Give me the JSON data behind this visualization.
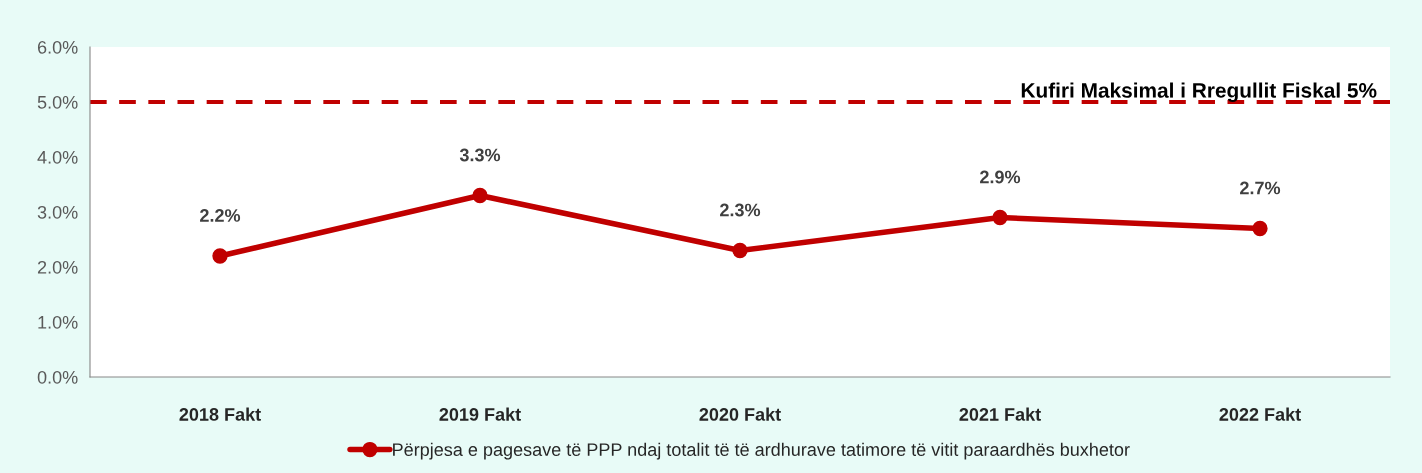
{
  "chart_data": {
    "type": "line",
    "categories": [
      "2018 Fakt",
      "2019 Fakt",
      "2020 Fakt",
      "2021 Fakt",
      "2022 Fakt"
    ],
    "series": [
      {
        "name": "Përpjesa e pagesave të PPP ndaj totalit të të ardhurave tatimore të vitit paraardhës buxhetor",
        "color": "#c00000",
        "values": [
          2.2,
          3.3,
          2.3,
          2.9,
          2.7
        ]
      }
    ],
    "ylim": [
      0,
      6
    ],
    "yticks": [
      {
        "value": 0,
        "label": "0.0%"
      },
      {
        "value": 1,
        "label": "1.0%"
      },
      {
        "value": 2,
        "label": "2.0%"
      },
      {
        "value": 3,
        "label": "3.0%"
      },
      {
        "value": 4,
        "label": "4.0%"
      },
      {
        "value": 5,
        "label": "5.0%"
      },
      {
        "value": 6,
        "label": "6.0%"
      }
    ],
    "value_labels": [
      "2.2%",
      "3.3%",
      "2.3%",
      "2.9%",
      "2.7%"
    ],
    "ref_lines": [
      {
        "axis": "y",
        "value": 5,
        "label": "Kufiri Maksimal i Rregullit Fiskal 5%",
        "color": "#c00000",
        "line_style": "dashed"
      }
    ],
    "marker": "circle",
    "line_style": "solid",
    "grid": false,
    "legend": "bottom"
  }
}
